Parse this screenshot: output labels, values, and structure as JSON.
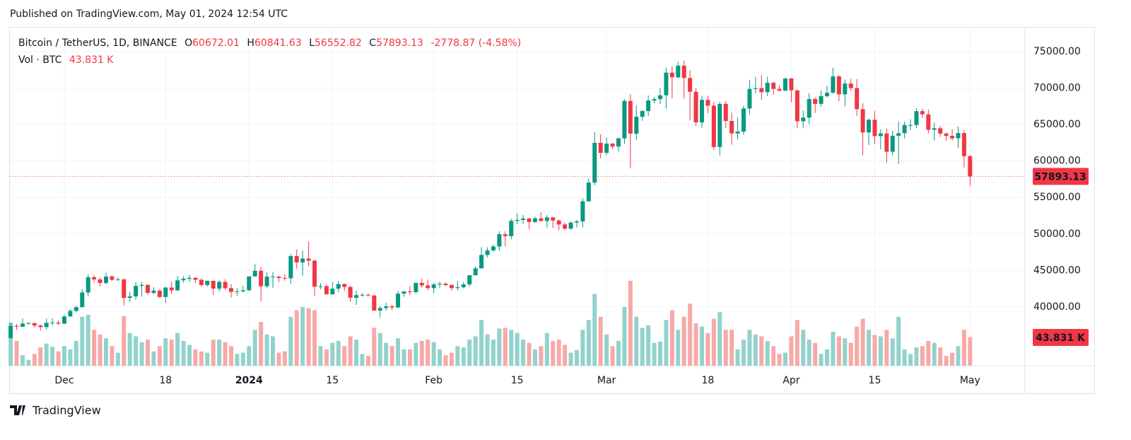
{
  "header": "Published on TradingView.com, May 01, 2024 12:54 UTC",
  "footer": "TradingView",
  "chart_data": {
    "type": "candlestick",
    "title": "Bitcoin / TetherUS, 1D, BINANCE",
    "legend_keys": [
      "O",
      "H",
      "L",
      "C"
    ],
    "change_label": "-2778.87 (-4.58%)",
    "volume_title": "Vol · BTC",
    "volume_label": "43.831 K",
    "up_color": "#089981",
    "down_color": "#f23645",
    "up_volume_color": "#92d2cc",
    "down_volume_color": "#f7a9a7",
    "grid": true,
    "ylim": [
      31940,
      78300
    ],
    "yticks": [
      {
        "value": 40000,
        "label": "40000.00"
      },
      {
        "value": 45000,
        "label": "45000.00"
      },
      {
        "value": 50000,
        "label": "50000.00"
      },
      {
        "value": 55000,
        "label": "55000.00"
      },
      {
        "value": 60000,
        "label": "60000.00"
      },
      {
        "value": 65000,
        "label": "65000.00"
      },
      {
        "value": 70000,
        "label": "70000.00"
      },
      {
        "value": 75000,
        "label": "75000.00"
      }
    ],
    "xticks": [
      {
        "value": 9,
        "label": "Dec"
      },
      {
        "value": 26,
        "label": "18"
      },
      {
        "value": 40,
        "label": "2024"
      },
      {
        "value": 54,
        "label": "15"
      },
      {
        "value": 71,
        "label": "Feb"
      },
      {
        "value": 85,
        "label": "15"
      },
      {
        "value": 100,
        "label": "Mar"
      },
      {
        "value": 117,
        "label": "18"
      },
      {
        "value": 131,
        "label": "Apr"
      },
      {
        "value": 145,
        "label": "15"
      },
      {
        "value": 161,
        "label": "May"
      }
    ],
    "open": [
      35750,
      37400,
      37290,
      37720,
      37790,
      37450,
      37240,
      37820,
      37850,
      37720,
      38690,
      39460,
      39970,
      41980,
      44080,
      43770,
      43290,
      44170,
      43720,
      43790,
      41240,
      41450,
      42890,
      43020,
      41930,
      42240,
      41360,
      42660,
      42270,
      43650,
      43860,
      43990,
      43720,
      43010,
      43580,
      42510,
      43440,
      42580,
      42070,
      42140,
      42280,
      44180,
      44950,
      42840,
      44150,
      44160,
      43970,
      43930,
      46970,
      46110,
      46630,
      46340,
      42780,
      42840,
      41730,
      42510,
      43140,
      42740,
      41260,
      41620,
      41660,
      41570,
      39510,
      39850,
      40080,
      39930,
      41820,
      42120,
      42030,
      43300,
      42950,
      42580,
      43080,
      43190,
      43000,
      42580,
      42700,
      43090,
      44340,
      45290,
      47130,
      47750,
      48290,
      49960,
      49700,
      51800,
      51930,
      52130,
      51650,
      52140,
      51780,
      52270,
      51850,
      51300,
      50740,
      51570,
      51730,
      54480,
      57050,
      62500,
      61130,
      62390,
      61990,
      63110,
      68250,
      63760,
      66070,
      66860,
      68300,
      68490,
      69020,
      72120,
      71480,
      73080,
      71390,
      69500,
      65300,
      68390,
      67600,
      61930,
      67840,
      65500,
      63790,
      64040,
      67210,
      69880,
      69990,
      69450,
      70740,
      69890,
      69650,
      71330,
      69700,
      65460,
      65960,
      68510,
      67840,
      68900,
      69360,
      71620,
      69150,
      70630,
      70000,
      67120,
      63920,
      65660,
      63420,
      63790,
      61280,
      63470,
      63820,
      64940,
      64940,
      66840,
      66410,
      64290,
      64500,
      63770,
      63460,
      63120,
      63840,
      60672.01
    ],
    "high": [
      37860,
      37650,
      38420,
      37860,
      37830,
      37590,
      38400,
      38450,
      38150,
      38960,
      39710,
      40200,
      42430,
      44490,
      44300,
      44040,
      44700,
      44370,
      44050,
      43840,
      42100,
      43430,
      43420,
      43090,
      42720,
      42440,
      42760,
      43500,
      44280,
      44240,
      44400,
      44050,
      43950,
      43610,
      43620,
      43680,
      43800,
      43120,
      42600,
      42890,
      44200,
      45880,
      45500,
      44730,
      44800,
      44220,
      44490,
      47250,
      47890,
      47700,
      48970,
      46500,
      43250,
      43080,
      43400,
      43580,
      43200,
      42930,
      42200,
      41870,
      41890,
      41660,
      40130,
      40570,
      40300,
      42220,
      42200,
      42840,
      43330,
      43880,
      43750,
      43290,
      43490,
      43380,
      43120,
      43540,
      43420,
      44370,
      45600,
      48200,
      48170,
      48590,
      50370,
      50360,
      52080,
      52820,
      52600,
      52210,
      52370,
      52990,
      52580,
      52370,
      52000,
      51550,
      51690,
      51950,
      54900,
      57590,
      64000,
      63680,
      63200,
      62480,
      63230,
      68500,
      69170,
      67640,
      67000,
      69000,
      68790,
      70000,
      72800,
      73000,
      73650,
      73780,
      72420,
      70000,
      68900,
      68950,
      68100,
      68100,
      68200,
      66660,
      65970,
      67600,
      71150,
      71560,
      71770,
      71550,
      70900,
      70350,
      71370,
      71360,
      69700,
      66900,
      69300,
      68720,
      69660,
      70330,
      72800,
      71750,
      71170,
      71280,
      71250,
      67930,
      65830,
      66870,
      64360,
      64480,
      64120,
      65450,
      65390,
      65720,
      67230,
      67200,
      67070,
      65300,
      64800,
      63920,
      64360,
      64730,
      64230,
      60841.63
    ],
    "low": [
      35650,
      36860,
      37250,
      37600,
      37150,
      36720,
      36880,
      37500,
      37490,
      37620,
      38650,
      39280,
      39950,
      41420,
      43330,
      42820,
      43080,
      43580,
      43560,
      40220,
      40680,
      40980,
      41420,
      41620,
      41730,
      41250,
      40530,
      41800,
      42220,
      43310,
      43420,
      43290,
      42760,
      42780,
      41620,
      42100,
      42300,
      41300,
      41520,
      41960,
      42180,
      44150,
      40750,
      42620,
      42630,
      43400,
      43600,
      43180,
      45240,
      44300,
      45600,
      41500,
      42440,
      41720,
      41720,
      42050,
      42200,
      40680,
      40280,
      41430,
      41410,
      39440,
      38560,
      39480,
      39550,
      39820,
      41390,
      41620,
      41810,
      42680,
      42280,
      41880,
      42580,
      42880,
      42220,
      42260,
      42570,
      42790,
      44330,
      45250,
      46800,
      47540,
      47710,
      48300,
      49260,
      51330,
      51360,
      50630,
      51530,
      51700,
      50890,
      50820,
      50500,
      50520,
      50570,
      50900,
      50900,
      54430,
      56690,
      60360,
      60780,
      61660,
      61310,
      62300,
      59000,
      62850,
      65520,
      66140,
      67930,
      67820,
      67190,
      68620,
      71330,
      68550,
      65610,
      64780,
      64550,
      66570,
      61500,
      60770,
      64530,
      62260,
      63000,
      63570,
      66380,
      69280,
      68360,
      68920,
      69110,
      69580,
      69570,
      68060,
      64490,
      64500,
      65060,
      66600,
      67440,
      68710,
      69250,
      68200,
      67510,
      69560,
      66200,
      60800,
      62200,
      62300,
      61600,
      59770,
      60800,
      59600,
      63100,
      64240,
      64500,
      65870,
      63850,
      62800,
      63300,
      62790,
      62810,
      61800,
      59120,
      56552.82
    ],
    "close": [
      37400,
      37290,
      37720,
      37790,
      37450,
      37240,
      37820,
      37850,
      37720,
      38690,
      39460,
      39970,
      41980,
      44080,
      43770,
      43290,
      44170,
      43720,
      43790,
      41240,
      41450,
      42890,
      43020,
      41930,
      42240,
      41360,
      42660,
      42270,
      43650,
      43860,
      43990,
      43720,
      43010,
      43580,
      42510,
      43440,
      42580,
      42070,
      42140,
      42280,
      44180,
      44950,
      42840,
      44150,
      44160,
      43970,
      43930,
      46970,
      46110,
      46630,
      46340,
      42780,
      42840,
      41730,
      42510,
      43140,
      42740,
      41260,
      41620,
      41660,
      41570,
      39510,
      39850,
      40080,
      39930,
      41820,
      42120,
      42030,
      43300,
      42950,
      42580,
      43080,
      43190,
      43000,
      42580,
      42700,
      43090,
      44340,
      45290,
      47130,
      47750,
      48290,
      49960,
      49700,
      51800,
      51930,
      52130,
      51650,
      52140,
      51780,
      52270,
      51850,
      51300,
      50740,
      51570,
      51730,
      54480,
      57050,
      62500,
      61130,
      62390,
      61990,
      63110,
      68250,
      63760,
      66070,
      66860,
      68300,
      68490,
      69020,
      72120,
      71480,
      73080,
      71390,
      69500,
      65300,
      68390,
      67600,
      61930,
      67840,
      65500,
      63790,
      64040,
      67210,
      69880,
      69990,
      69450,
      70740,
      69890,
      69650,
      71330,
      69700,
      65460,
      65960,
      68510,
      67840,
      68900,
      69360,
      71620,
      69150,
      70630,
      70000,
      67120,
      63920,
      65660,
      63420,
      63790,
      61280,
      63470,
      63820,
      64940,
      64940,
      66840,
      66410,
      64290,
      64500,
      63770,
      63460,
      63120,
      63840,
      60672.01,
      57893.13
    ],
    "volume": [
      66,
      38,
      16,
      9,
      18,
      28,
      34,
      29,
      22,
      30,
      25,
      38,
      75,
      78,
      55,
      48,
      42,
      30,
      20,
      76,
      50,
      45,
      36,
      40,
      22,
      30,
      42,
      40,
      50,
      38,
      32,
      25,
      22,
      20,
      40,
      40,
      36,
      30,
      18,
      20,
      30,
      55,
      67,
      48,
      45,
      20,
      22,
      75,
      85,
      90,
      88,
      85,
      30,
      25,
      35,
      38,
      30,
      45,
      40,
      18,
      15,
      58,
      50,
      35,
      30,
      42,
      25,
      25,
      35,
      38,
      40,
      36,
      25,
      16,
      20,
      30,
      28,
      40,
      45,
      70,
      48,
      40,
      57,
      58,
      55,
      50,
      40,
      35,
      25,
      30,
      50,
      38,
      40,
      32,
      20,
      24,
      55,
      70,
      110,
      75,
      48,
      30,
      38,
      90,
      130,
      75,
      58,
      62,
      35,
      37,
      70,
      85,
      55,
      75,
      95,
      65,
      60,
      50,
      72,
      82,
      55,
      55,
      25,
      40,
      55,
      48,
      45,
      38,
      30,
      18,
      20,
      45,
      70,
      55,
      40,
      35,
      18,
      25,
      52,
      45,
      42,
      35,
      60,
      72,
      55,
      47,
      45,
      55,
      42,
      75,
      25,
      18,
      28,
      30,
      38,
      35,
      28,
      15,
      20,
      30,
      55,
      43.831
    ]
  }
}
